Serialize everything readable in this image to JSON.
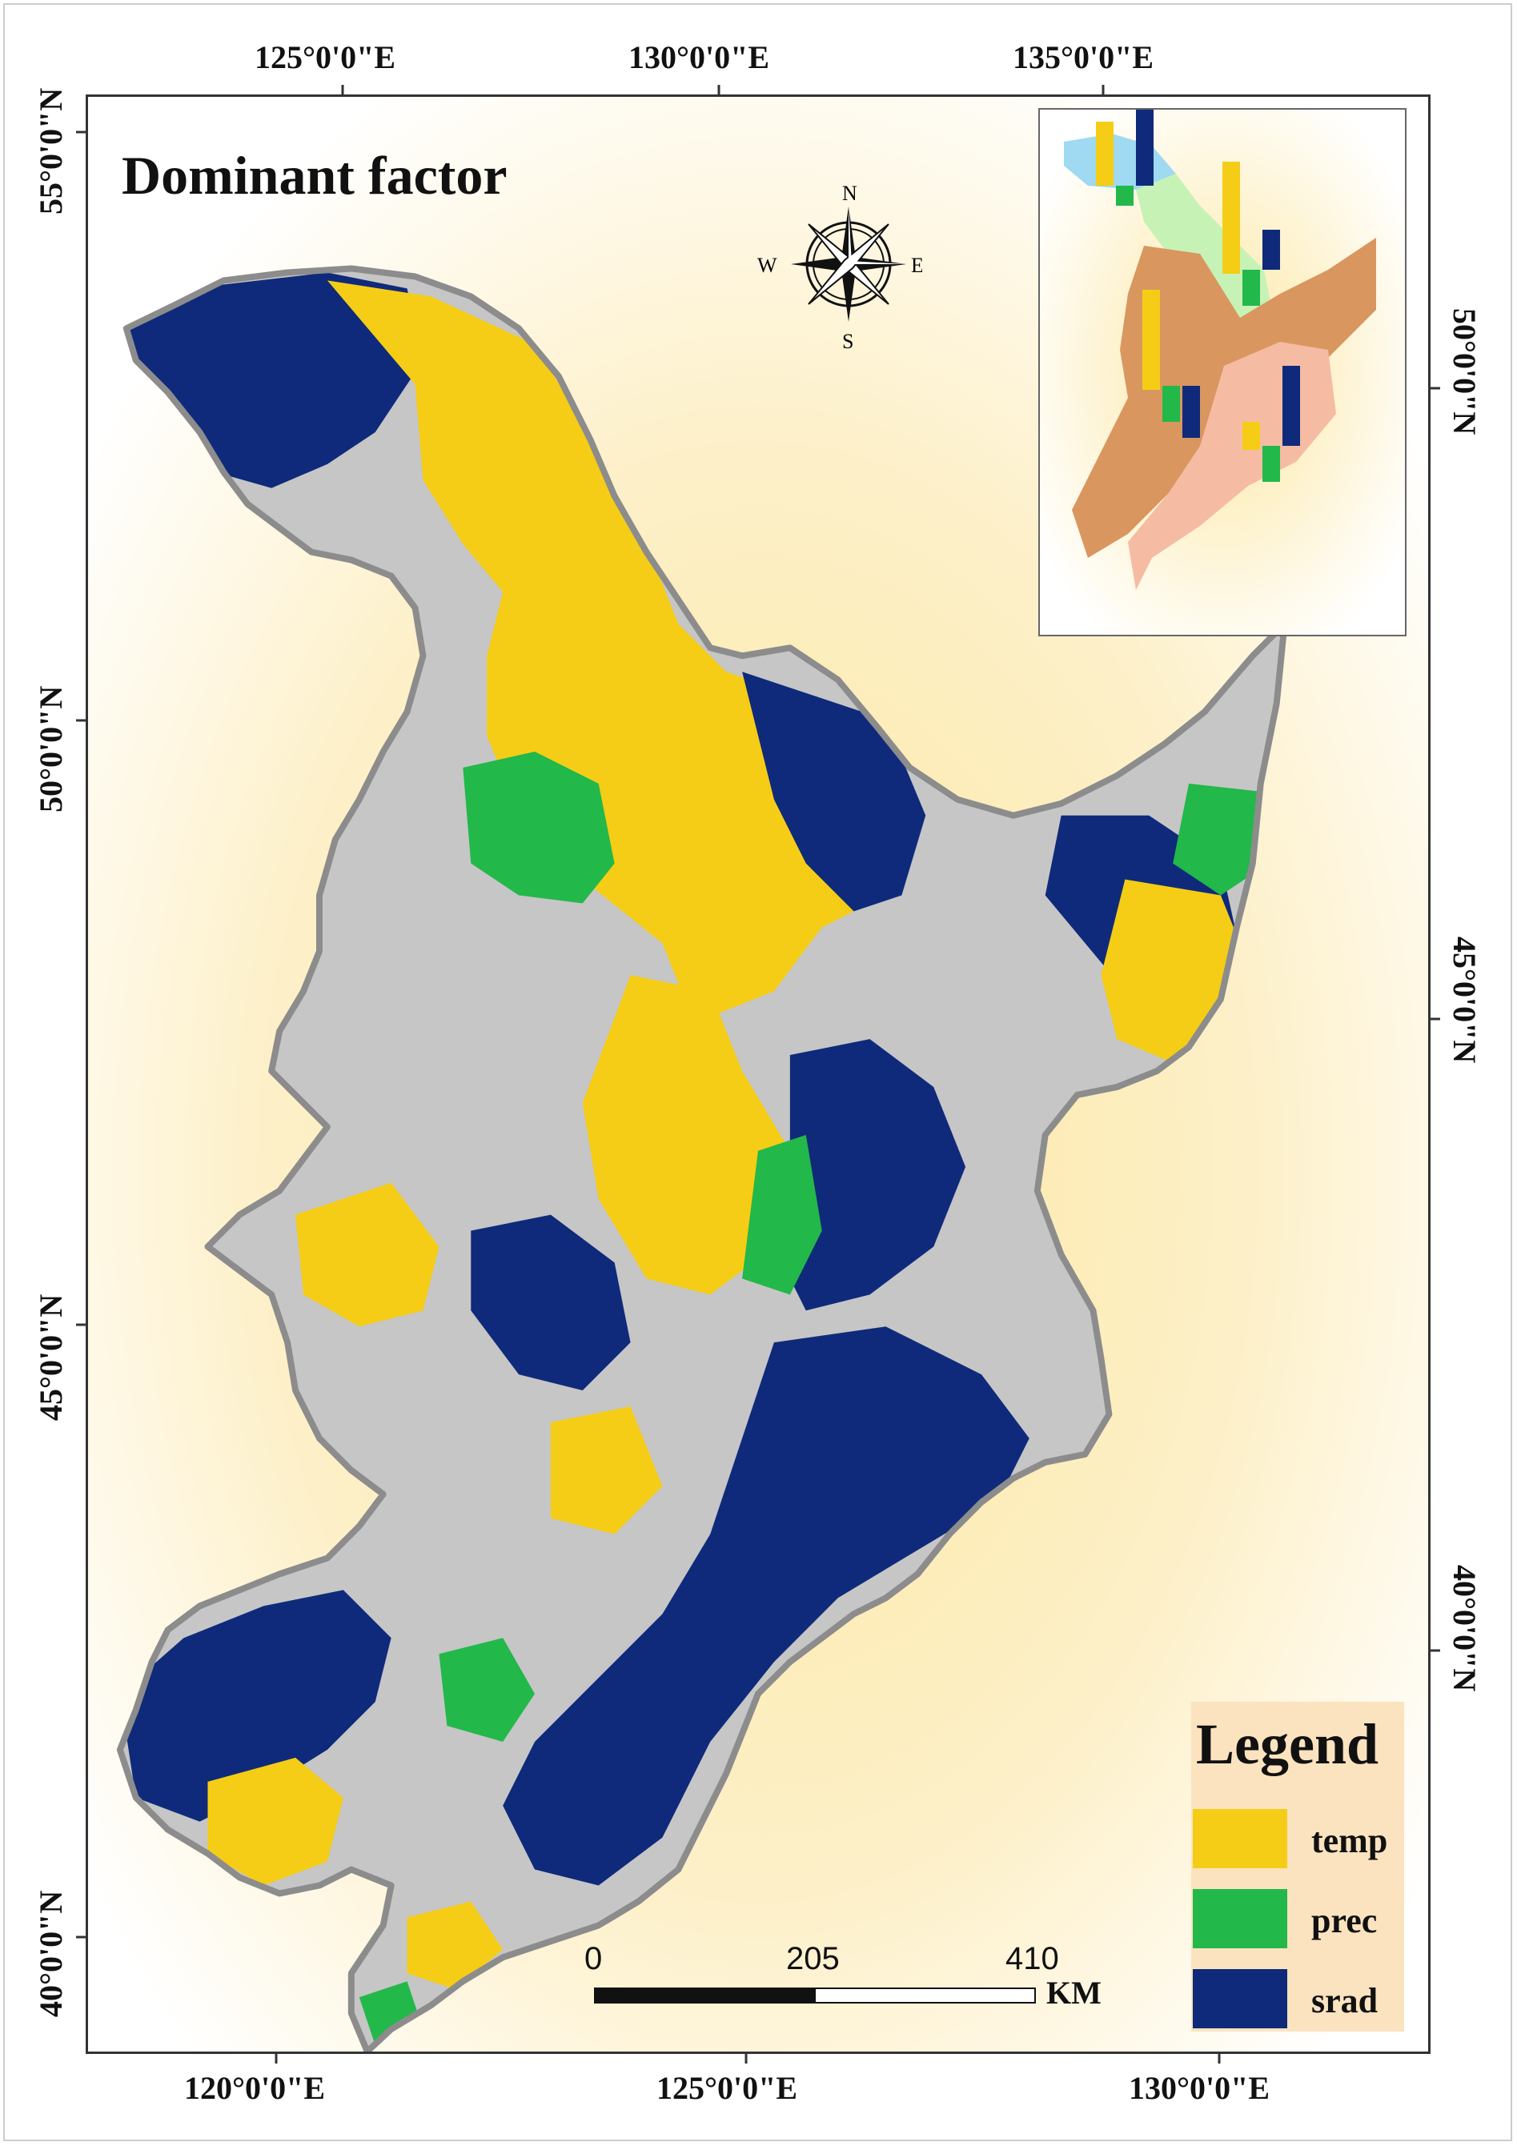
{
  "map": {
    "title": "Dominant factor",
    "top_ticks": [
      "125°0'0\"E",
      "130°0'0\"E",
      "135°0'0\"E"
    ],
    "bottom_ticks": [
      "120°0'0\"E",
      "125°0'0\"E",
      "130°0'0\"E"
    ],
    "left_ticks": [
      "55°0'0\"N",
      "50°0'0\"N",
      "45°0'0\"N",
      "40°0'0\"N"
    ],
    "right_ticks": [
      "50°0'0\"N",
      "45°0'0\"N",
      "40°0'0\"N"
    ],
    "compass": {
      "n": "N",
      "s": "S",
      "e": "E",
      "w": "W"
    },
    "scale_bar": {
      "labels": [
        "0",
        "205",
        "410"
      ],
      "unit": "KM"
    },
    "legend": {
      "title": "Legend",
      "items": [
        {
          "label": "temp",
          "color": "#f5cd16"
        },
        {
          "label": "prec",
          "color": "#22b84a"
        },
        {
          "label": "srad",
          "color": "#0f2a7a"
        }
      ]
    },
    "colors": {
      "region_fill": "#c6c6c6",
      "region_outline": "#8c8c8c",
      "background_glow": "#fdeaa6",
      "inset_regions": [
        "#d9965f",
        "#f5bba3",
        "#c7f2b6",
        "#9fd9f2"
      ]
    },
    "inset_bars": [
      {
        "series": "temp",
        "color": "#f5cd16"
      },
      {
        "series": "prec",
        "color": "#22b84a"
      },
      {
        "series": "srad",
        "color": "#0f2a7a"
      }
    ]
  }
}
